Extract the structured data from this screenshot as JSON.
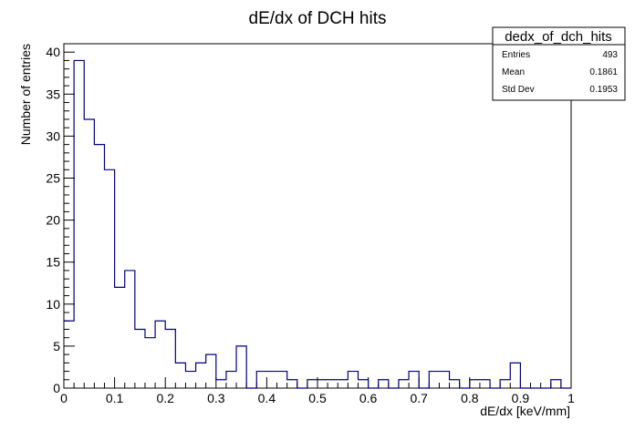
{
  "chart_data": {
    "type": "bar",
    "title": "dE/dx of DCH hits",
    "xlabel": "dE/dx [keV/mm]",
    "ylabel": "Number of entries",
    "xlim": [
      0,
      1
    ],
    "ylim": [
      0,
      41
    ],
    "bin_width": 0.02,
    "x_ticks": [
      "0",
      "0.1",
      "0.2",
      "0.3",
      "0.4",
      "0.5",
      "0.6",
      "0.7",
      "0.8",
      "0.9",
      "1"
    ],
    "y_ticks": [
      "0",
      "5",
      "10",
      "15",
      "20",
      "25",
      "30",
      "35",
      "40"
    ],
    "bin_edges_x": [
      0,
      0.02,
      0.04,
      0.06,
      0.08,
      0.1,
      0.12,
      0.14,
      0.16,
      0.18,
      0.2,
      0.22,
      0.24,
      0.26,
      0.28,
      0.3,
      0.32,
      0.34,
      0.36,
      0.38,
      0.4,
      0.42,
      0.44,
      0.46,
      0.48,
      0.5,
      0.52,
      0.54,
      0.56,
      0.58,
      0.6,
      0.62,
      0.64,
      0.66,
      0.68,
      0.7,
      0.72,
      0.74,
      0.76,
      0.78,
      0.8,
      0.82,
      0.84,
      0.86,
      0.88,
      0.9,
      0.92,
      0.94,
      0.96,
      0.98
    ],
    "values": [
      8,
      39,
      32,
      29,
      26,
      12,
      14,
      7,
      6,
      8,
      7,
      3,
      2,
      3,
      4,
      1,
      2,
      5,
      0,
      2,
      2,
      2,
      1,
      0,
      1,
      1,
      1,
      1,
      2,
      1,
      0,
      1,
      0,
      1,
      2,
      0,
      2,
      2,
      1,
      0,
      1,
      1,
      0,
      1,
      3,
      0,
      0,
      0,
      1,
      0
    ],
    "line_color": "#000080",
    "legend_placement": "top-right",
    "grid": false,
    "stats": {
      "name": "dedx_of_dch_hits",
      "rows": [
        {
          "label": "Entries",
          "value": "493"
        },
        {
          "label": "Mean",
          "value": "0.1861"
        },
        {
          "label": "Std Dev",
          "value": "0.1953"
        }
      ]
    }
  }
}
